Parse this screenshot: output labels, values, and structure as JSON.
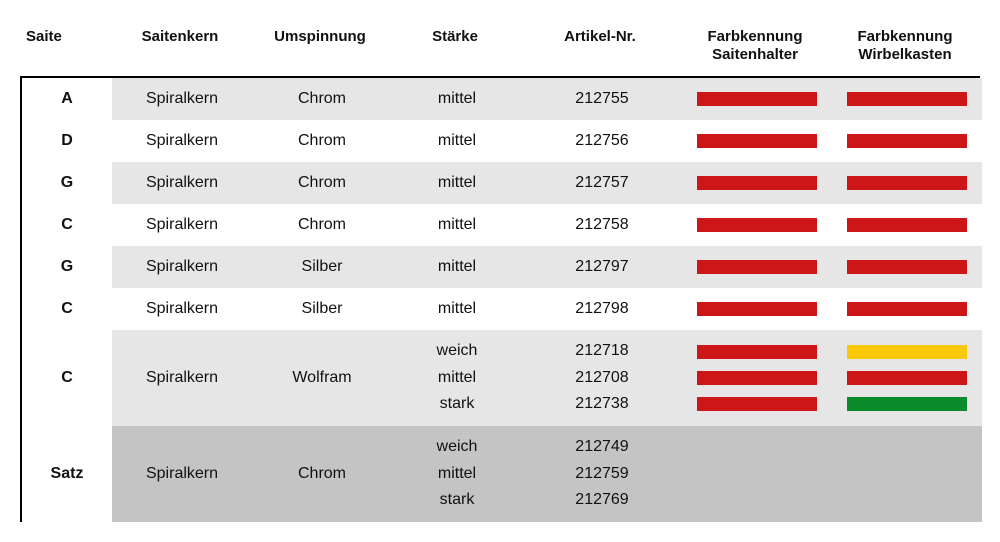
{
  "colors": {
    "red": "#cc1618",
    "yellow": "#f8c90b",
    "green": "#0b8a2b",
    "row_light": "#e6e6e6",
    "row_white": "#ffffff",
    "row_dark": "#c4c4c4"
  },
  "headers": {
    "saite": "Saite",
    "saitenkern": "Saitenkern",
    "umspinnung": "Umspinnung",
    "staerke": "Stärke",
    "artikel": "Artikel-Nr.",
    "farb1_l1": "Farbkennung",
    "farb1_l2": "Saitenhalter",
    "farb2_l1": "Farbkennung",
    "farb2_l2": "Wirbelkasten"
  },
  "rows": [
    {
      "saite": "A",
      "kern": "Spiralkern",
      "ums": "Chrom",
      "staerke": [
        "mittel"
      ],
      "art": [
        "212755"
      ],
      "sw1": [
        "red"
      ],
      "sw2": [
        "red"
      ],
      "bg": "light"
    },
    {
      "saite": "D",
      "kern": "Spiralkern",
      "ums": "Chrom",
      "staerke": [
        "mittel"
      ],
      "art": [
        "212756"
      ],
      "sw1": [
        "red"
      ],
      "sw2": [
        "red"
      ],
      "bg": "white"
    },
    {
      "saite": "G",
      "kern": "Spiralkern",
      "ums": "Chrom",
      "staerke": [
        "mittel"
      ],
      "art": [
        "212757"
      ],
      "sw1": [
        "red"
      ],
      "sw2": [
        "red"
      ],
      "bg": "light"
    },
    {
      "saite": "C",
      "kern": "Spiralkern",
      "ums": "Chrom",
      "staerke": [
        "mittel"
      ],
      "art": [
        "212758"
      ],
      "sw1": [
        "red"
      ],
      "sw2": [
        "red"
      ],
      "bg": "white"
    },
    {
      "saite": "G",
      "kern": "Spiralkern",
      "ums": "Silber",
      "staerke": [
        "mittel"
      ],
      "art": [
        "212797"
      ],
      "sw1": [
        "red"
      ],
      "sw2": [
        "red"
      ],
      "bg": "light"
    },
    {
      "saite": "C",
      "kern": "Spiralkern",
      "ums": "Silber",
      "staerke": [
        "mittel"
      ],
      "art": [
        "212798"
      ],
      "sw1": [
        "red"
      ],
      "sw2": [
        "red"
      ],
      "bg": "white"
    },
    {
      "saite": "C",
      "kern": "Spiralkern",
      "ums": "Wolfram",
      "staerke": [
        "weich",
        "mittel",
        "stark"
      ],
      "art": [
        "212718",
        "212708",
        "212738"
      ],
      "sw1": [
        "red",
        "red",
        "red"
      ],
      "sw2": [
        "yellow",
        "red",
        "green"
      ],
      "bg": "light"
    },
    {
      "saite": "Satz",
      "kern": "Spiralkern",
      "ums": "Chrom",
      "staerke": [
        "weich",
        "mittel",
        "stark"
      ],
      "art": [
        "212749",
        "212759",
        "212769"
      ],
      "sw1": [],
      "sw2": [],
      "bg": "dark"
    }
  ]
}
